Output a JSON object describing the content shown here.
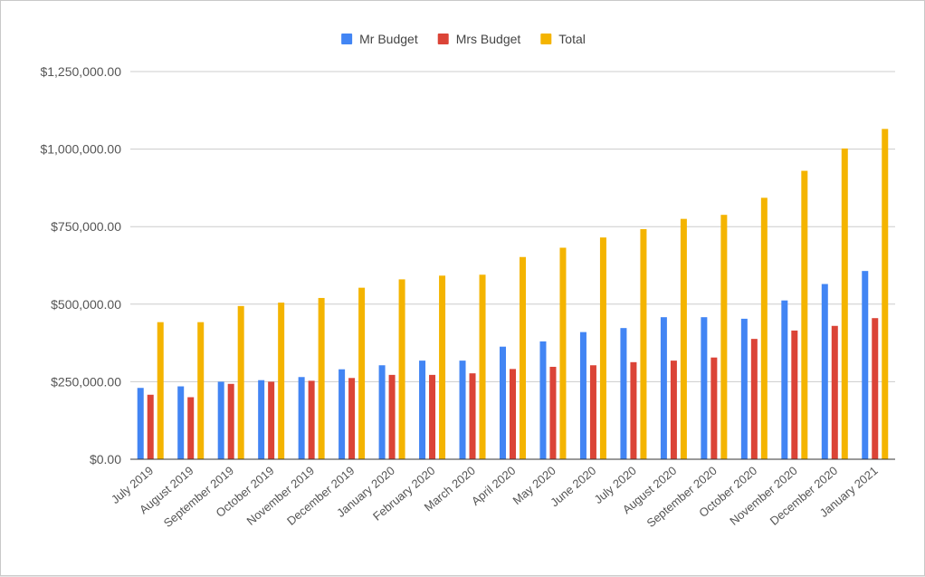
{
  "chart_data": {
    "type": "bar",
    "title": "",
    "xlabel": "",
    "ylabel": "",
    "ylim": [
      0,
      1250000
    ],
    "yticks": [
      {
        "value": 0,
        "label": "$0.00"
      },
      {
        "value": 250000,
        "label": "$250,000.00"
      },
      {
        "value": 500000,
        "label": "$500,000.00"
      },
      {
        "value": 750000,
        "label": "$750,000.00"
      },
      {
        "value": 1000000,
        "label": "$1,000,000.00"
      },
      {
        "value": 1250000,
        "label": "$1,250,000.00"
      }
    ],
    "grid": true,
    "legend_position": "top-center",
    "categories": [
      "July 2019",
      "August 2019",
      "September 2019",
      "October 2019",
      "November 2019",
      "December 2019",
      "January 2020",
      "February 2020",
      "March 2020",
      "April 2020",
      "May 2020",
      "June 2020",
      "July 2020",
      "August 2020",
      "September 2020",
      "October 2020",
      "November 2020",
      "December 2020",
      "January 2021"
    ],
    "series": [
      {
        "name": "Mr Budget",
        "color": "#4285F4",
        "values": [
          230000,
          235000,
          250000,
          255000,
          265000,
          290000,
          303000,
          318000,
          318000,
          363000,
          380000,
          410000,
          423000,
          458000,
          458000,
          453000,
          512000,
          565000,
          607000
        ]
      },
      {
        "name": "Mrs Budget",
        "color": "#DB4437",
        "values": [
          208000,
          200000,
          243000,
          250000,
          253000,
          262000,
          272000,
          272000,
          277000,
          291000,
          298000,
          303000,
          313000,
          318000,
          328000,
          388000,
          415000,
          430000,
          455000
        ]
      },
      {
        "name": "Total",
        "color": "#F4B400",
        "values": [
          442000,
          442000,
          494000,
          505000,
          520000,
          553000,
          580000,
          592000,
          595000,
          652000,
          682000,
          715000,
          742000,
          775000,
          788000,
          843000,
          930000,
          1002000,
          1065000
        ]
      }
    ]
  }
}
